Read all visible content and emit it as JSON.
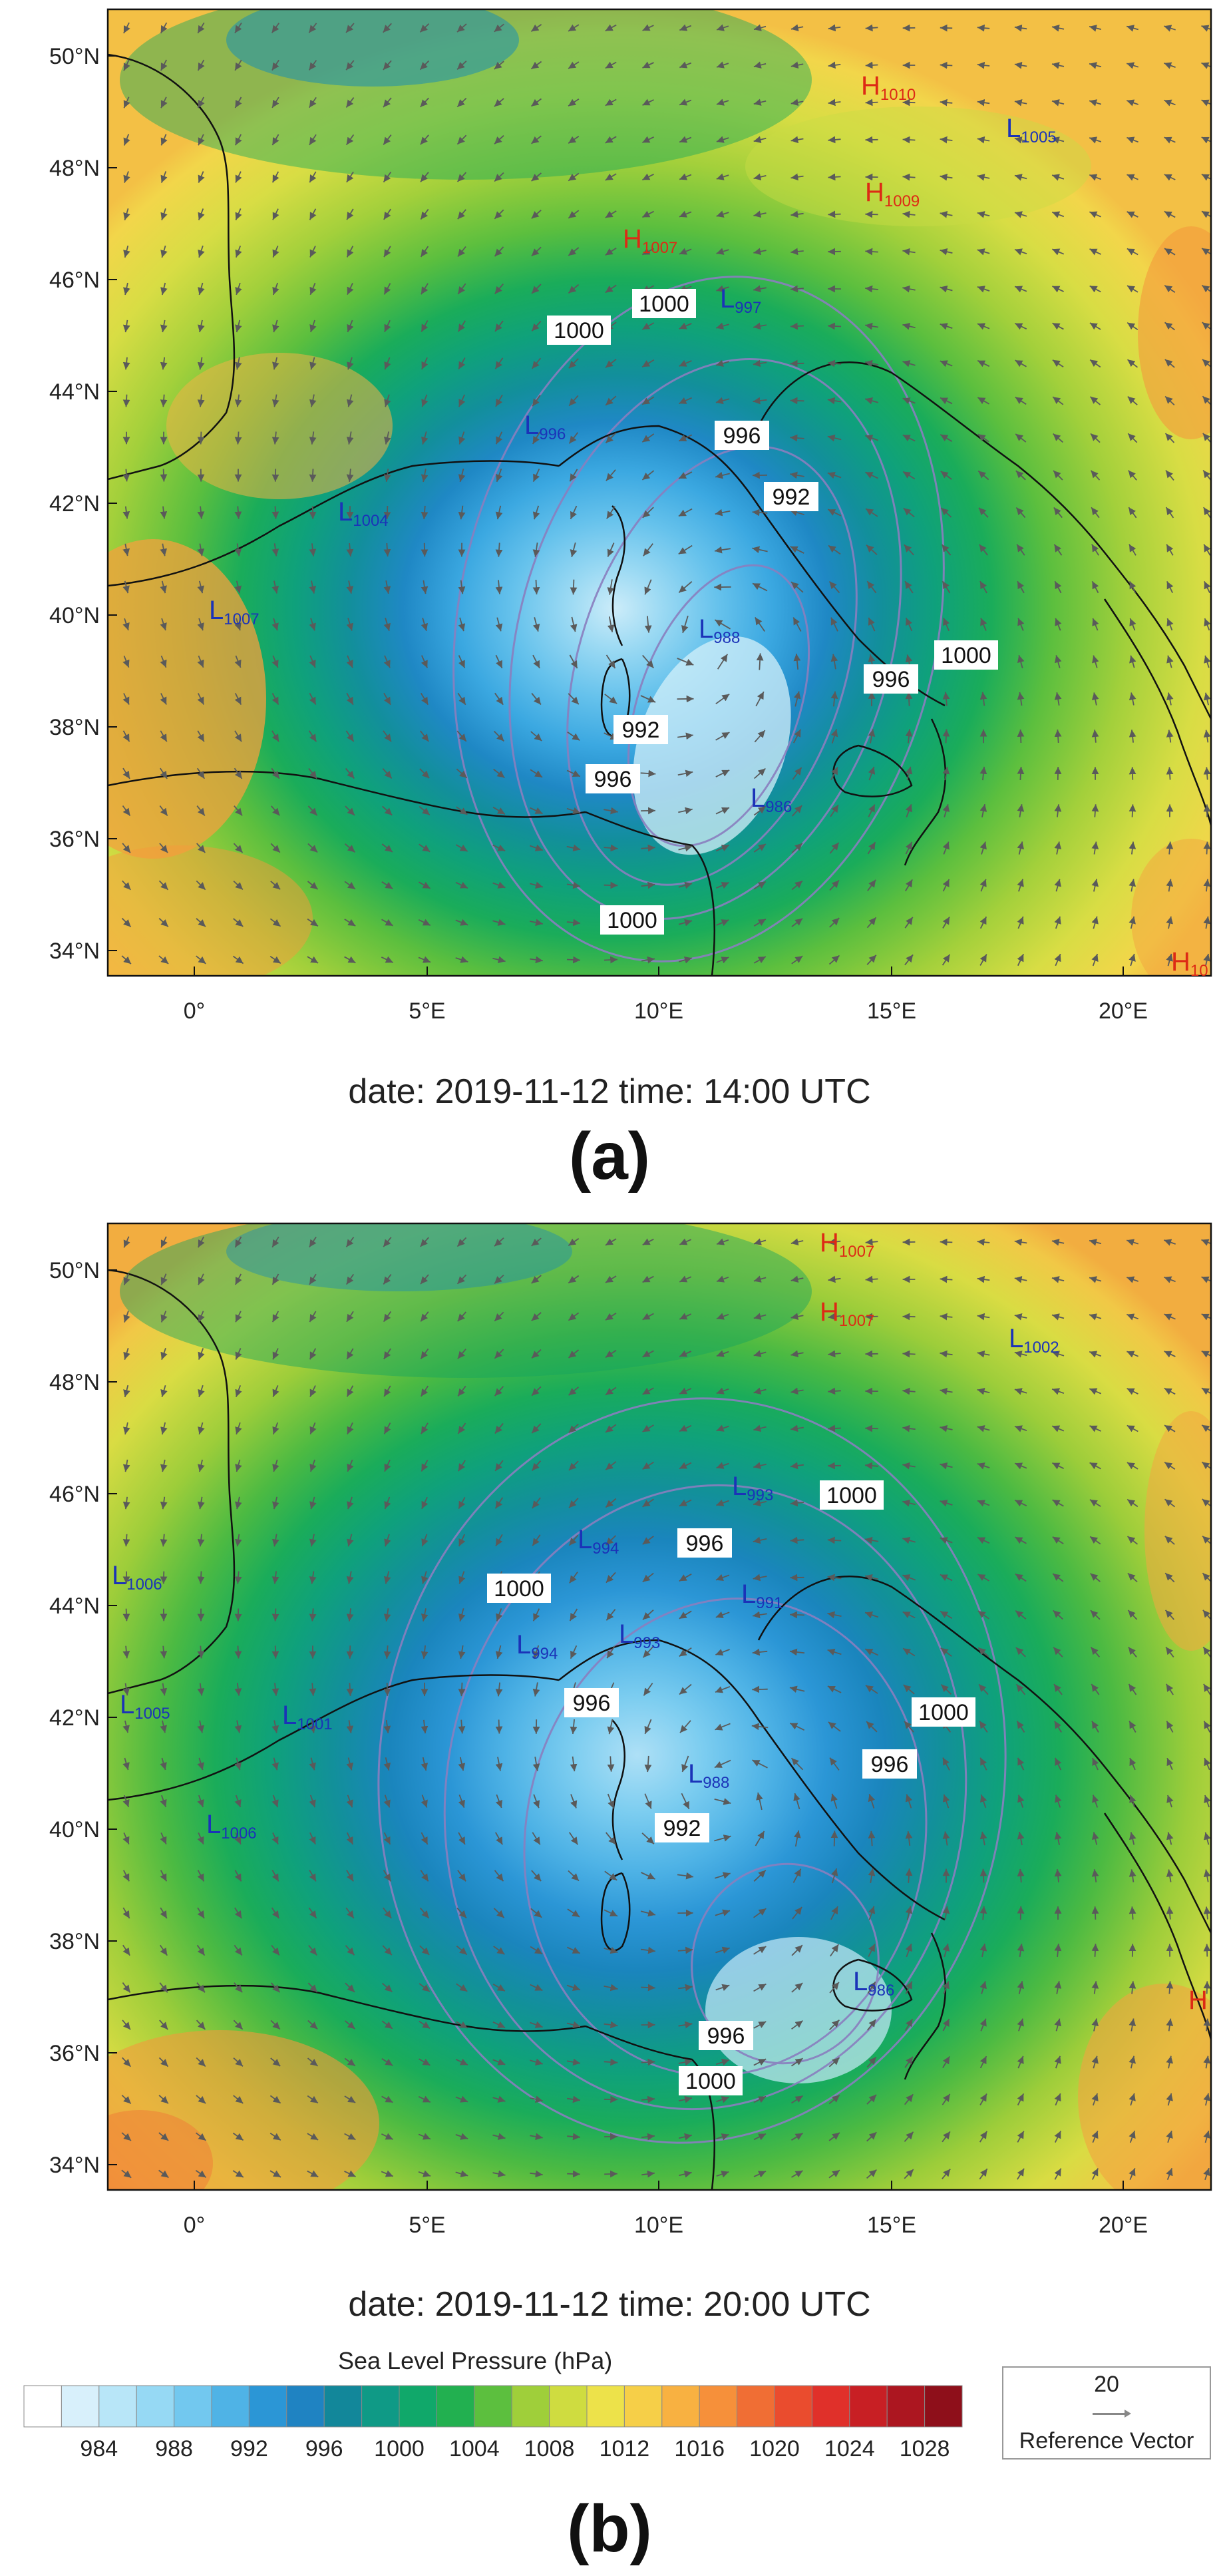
{
  "panels": [
    {
      "id": "a",
      "letter": "(a)",
      "datetime": "date: 2019-11-12   time: 14:00 UTC",
      "lat_ticks": [
        "50°N",
        "48°N",
        "46°N",
        "44°N",
        "42°N",
        "40°N",
        "38°N",
        "36°N",
        "34°N"
      ],
      "lon_ticks": [
        "0°",
        "5°E",
        "10°E",
        "15°E",
        "20°E"
      ],
      "contour_labels": [
        "1000",
        "1000",
        "996",
        "992",
        "996",
        "1000",
        "992",
        "996",
        "1000"
      ],
      "lows": [
        {
          "text": "L",
          "sub": "997"
        },
        {
          "text": "L",
          "sub": "996"
        },
        {
          "text": "L",
          "sub": "1004"
        },
        {
          "text": "L",
          "sub": "1007"
        },
        {
          "text": "L",
          "sub": "988"
        },
        {
          "text": "L",
          "sub": "986"
        },
        {
          "text": "L",
          "sub": "1005"
        }
      ],
      "highs": [
        {
          "text": "H",
          "sub": "1010"
        },
        {
          "text": "H",
          "sub": "1009"
        },
        {
          "text": "H",
          "sub": "1007"
        },
        {
          "text": "H",
          "sub": "10"
        }
      ]
    },
    {
      "id": "b",
      "letter": "(b)",
      "datetime": "date: 2019-11-12   time: 20:00 UTC",
      "lat_ticks": [
        "50°N",
        "48°N",
        "46°N",
        "44°N",
        "42°N",
        "40°N",
        "38°N",
        "36°N",
        "34°N"
      ],
      "lon_ticks": [
        "0°",
        "5°E",
        "10°E",
        "15°E",
        "20°E"
      ],
      "contour_labels": [
        "1000",
        "996",
        "1000",
        "996",
        "1000",
        "996",
        "992",
        "996",
        "1000"
      ],
      "lows": [
        {
          "text": "L",
          "sub": "993"
        },
        {
          "text": "L",
          "sub": "994"
        },
        {
          "text": "L",
          "sub": "991"
        },
        {
          "text": "L",
          "sub": "994"
        },
        {
          "text": "L",
          "sub": "993"
        },
        {
          "text": "L",
          "sub": "988"
        },
        {
          "text": "L",
          "sub": "986"
        },
        {
          "text": "L",
          "sub": "1006"
        },
        {
          "text": "L",
          "sub": "1005"
        },
        {
          "text": "L",
          "sub": "1001"
        },
        {
          "text": "L",
          "sub": "1006"
        },
        {
          "text": "L",
          "sub": "1002"
        }
      ],
      "highs": [
        {
          "text": "H",
          "sub": "1007"
        },
        {
          "text": "H",
          "sub": "1007"
        },
        {
          "text": "H",
          "sub": ""
        }
      ]
    }
  ],
  "colorbar": {
    "title": "Sea Level Pressure  (hPa)",
    "tick_labels": [
      "984",
      "988",
      "992",
      "996",
      "1000",
      "1004",
      "1008",
      "1012",
      "1016",
      "1020",
      "1024",
      "1028"
    ],
    "colors": [
      "#ffffff",
      "#d8f0fb",
      "#b8e6f8",
      "#96d9f4",
      "#72c8ef",
      "#4fb3e6",
      "#2b96d6",
      "#1f83c2",
      "#12879a",
      "#0f9a86",
      "#10a86a",
      "#22b050",
      "#5cbf3e",
      "#9fcf3a",
      "#cfdc40",
      "#ede24a",
      "#f6cf48",
      "#f8b141",
      "#f6903a",
      "#f06e34",
      "#ea4c2e",
      "#e0302a",
      "#c81f24",
      "#ac1620",
      "#8e0f1a"
    ]
  },
  "reference_vector": {
    "magnitude": "20",
    "label": "Reference Vector"
  },
  "colors": {
    "low_label": "#1b33b8",
    "high_label": "#dd2a15",
    "coast": "#111111",
    "contour": "#8a7fbf"
  }
}
